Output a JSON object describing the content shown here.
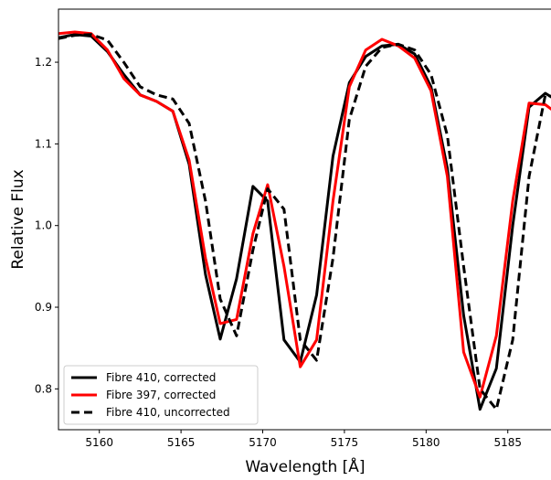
{
  "chart_data": {
    "type": "line",
    "title": "",
    "xlabel": "Wavelength [Å]",
    "ylabel": "Relative Flux",
    "xlim": [
      5157.5,
      5187.7
    ],
    "ylim": [
      0.75,
      1.265
    ],
    "xticks": [
      5160,
      5165,
      5170,
      5175,
      5180,
      5185
    ],
    "xtick_labels": [
      "5160",
      "5165",
      "5170",
      "5175",
      "5180",
      "5185"
    ],
    "yticks": [
      0.8,
      0.9,
      1.0,
      1.1,
      1.2
    ],
    "ytick_labels": [
      "0.8",
      "0.9",
      "1.0",
      "1.1",
      "1.2"
    ],
    "grid": false,
    "legend_position": "lower-left",
    "series": [
      {
        "name": "Fibre 410, corrected",
        "color": "#000000",
        "style": "solid",
        "x": [
          5157.5,
          5158.5,
          5159.5,
          5160.5,
          5161.5,
          5162.5,
          5163.5,
          5164.5,
          5165.5,
          5166.5,
          5167.4,
          5168.4,
          5169.4,
          5170.3,
          5171.3,
          5172.3,
          5173.3,
          5174.3,
          5175.3,
          5176.3,
          5177.3,
          5178.3,
          5179.3,
          5180.3,
          5181.3,
          5182.3,
          5183.3,
          5184.3,
          5185.3,
          5186.3,
          5187.3,
          5187.7
        ],
        "y": [
          1.23,
          1.234,
          1.232,
          1.213,
          1.185,
          1.16,
          1.152,
          1.14,
          1.075,
          0.94,
          0.861,
          0.935,
          1.048,
          1.03,
          0.86,
          0.833,
          0.915,
          1.085,
          1.175,
          1.207,
          1.22,
          1.222,
          1.21,
          1.17,
          1.07,
          0.89,
          0.775,
          0.825,
          1.0,
          1.145,
          1.162,
          1.157
        ]
      },
      {
        "name": "Fibre 397, corrected",
        "color": "#ff0000",
        "style": "solid",
        "x": [
          5157.5,
          5158.5,
          5159.5,
          5160.5,
          5161.5,
          5162.5,
          5163.5,
          5164.5,
          5165.5,
          5166.5,
          5167.4,
          5168.4,
          5169.4,
          5170.3,
          5171.3,
          5172.3,
          5173.3,
          5174.3,
          5175.3,
          5176.3,
          5177.3,
          5178.3,
          5179.3,
          5180.3,
          5181.3,
          5182.3,
          5183.3,
          5184.3,
          5185.3,
          5186.3,
          5187.3,
          5187.7
        ],
        "y": [
          1.235,
          1.237,
          1.235,
          1.215,
          1.18,
          1.16,
          1.152,
          1.14,
          1.08,
          0.96,
          0.88,
          0.885,
          0.99,
          1.05,
          0.95,
          0.827,
          0.86,
          1.03,
          1.17,
          1.215,
          1.228,
          1.22,
          1.205,
          1.165,
          1.06,
          0.845,
          0.79,
          0.865,
          1.03,
          1.15,
          1.148,
          1.142
        ]
      },
      {
        "name": "Fibre 410, uncorrected",
        "color": "#000000",
        "style": "dashed",
        "x": [
          5157.5,
          5158.5,
          5159.5,
          5160.5,
          5161.5,
          5162.5,
          5163.5,
          5164.5,
          5165.5,
          5166.5,
          5167.4,
          5168.4,
          5169.4,
          5170.3,
          5171.3,
          5172.3,
          5173.3,
          5174.3,
          5175.3,
          5176.3,
          5177.3,
          5178.3,
          5179.3,
          5180.3,
          5181.3,
          5182.3,
          5183.3,
          5184.3,
          5185.3,
          5186.3,
          5187.3,
          5187.7
        ],
        "y": [
          1.229,
          1.233,
          1.234,
          1.227,
          1.2,
          1.17,
          1.16,
          1.155,
          1.125,
          1.03,
          0.91,
          0.865,
          0.97,
          1.045,
          1.02,
          0.86,
          0.835,
          0.96,
          1.13,
          1.195,
          1.218,
          1.222,
          1.215,
          1.185,
          1.11,
          0.95,
          0.8,
          0.775,
          0.86,
          1.06,
          1.16,
          1.158
        ]
      }
    ]
  }
}
